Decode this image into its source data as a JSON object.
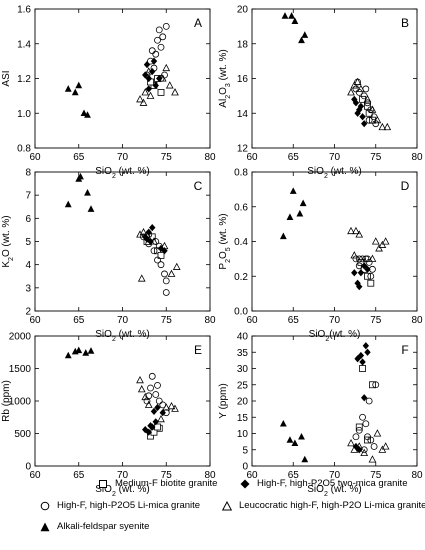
{
  "chart_data": [
    {
      "type": "scatter",
      "panel_letter": "A",
      "xlabel": "SiO2 (wt. %)",
      "ylabel": "ASI",
      "xlim": [
        60,
        80
      ],
      "ylim": [
        0.8,
        1.6
      ],
      "xticks": [
        60,
        65,
        70,
        75,
        80
      ],
      "yticks": [
        0.8,
        1.0,
        1.2,
        1.4,
        1.6
      ],
      "series": [
        {
          "key": "medium_f",
          "points": [
            [
              73.6,
              1.16
            ],
            [
              74.0,
              1.2
            ],
            [
              74.4,
              1.12
            ],
            [
              73.2,
              1.18
            ]
          ]
        },
        {
          "key": "high_f_two_mica",
          "points": [
            [
              72.6,
              1.22
            ],
            [
              73.0,
              1.2
            ],
            [
              73.4,
              1.24
            ],
            [
              73.8,
              1.16
            ],
            [
              74.2,
              1.2
            ],
            [
              73.0,
              1.14
            ],
            [
              72.8,
              1.28
            ],
            [
              73.6,
              1.3
            ]
          ]
        },
        {
          "key": "high_f_li_mica",
          "points": [
            [
              73.2,
              1.3
            ],
            [
              73.8,
              1.34
            ],
            [
              74.4,
              1.38
            ],
            [
              74.6,
              1.44
            ],
            [
              74.2,
              1.48
            ],
            [
              75.0,
              1.5
            ],
            [
              74.0,
              1.42
            ],
            [
              73.6,
              1.26
            ],
            [
              74.8,
              1.22
            ],
            [
              74.4,
              1.2
            ],
            [
              72.8,
              1.22
            ],
            [
              73.4,
              1.36
            ]
          ]
        },
        {
          "key": "leucocratic",
          "points": [
            [
              72.0,
              1.08
            ],
            [
              72.6,
              1.12
            ],
            [
              73.2,
              1.1
            ],
            [
              74.6,
              1.2
            ],
            [
              75.4,
              1.16
            ],
            [
              76.0,
              1.12
            ],
            [
              72.4,
              1.06
            ],
            [
              73.0,
              1.24
            ],
            [
              75.0,
              1.26
            ]
          ]
        },
        {
          "key": "syenite",
          "points": [
            [
              63.8,
              1.14
            ],
            [
              64.6,
              1.12
            ],
            [
              65.0,
              1.16
            ],
            [
              65.6,
              1.0
            ],
            [
              66.0,
              0.99
            ]
          ]
        }
      ]
    },
    {
      "type": "scatter",
      "panel_letter": "B",
      "xlabel": "SiO2 (wt. %)",
      "ylabel": "Al2O3 (wt. %)",
      "xlim": [
        60,
        80
      ],
      "ylim": [
        12,
        20
      ],
      "xticks": [
        60,
        65,
        70,
        75,
        80
      ],
      "yticks": [
        12,
        14,
        16,
        18,
        20
      ],
      "series": [
        {
          "key": "medium_f",
          "points": [
            [
              73.4,
              14.8
            ],
            [
              74.0,
              14.4
            ],
            [
              74.6,
              13.6
            ],
            [
              74.2,
              14.0
            ]
          ]
        },
        {
          "key": "high_f_two_mica",
          "points": [
            [
              72.6,
              14.6
            ],
            [
              73.0,
              14.2
            ],
            [
              73.4,
              13.8
            ],
            [
              73.2,
              14.4
            ],
            [
              72.8,
              14.0
            ],
            [
              73.6,
              13.4
            ],
            [
              72.4,
              14.8
            ]
          ]
        },
        {
          "key": "high_f_li_mica",
          "points": [
            [
              72.6,
              15.4
            ],
            [
              73.0,
              15.2
            ],
            [
              73.6,
              15.0
            ],
            [
              74.0,
              14.6
            ],
            [
              74.4,
              14.2
            ],
            [
              74.8,
              13.8
            ],
            [
              73.8,
              15.4
            ],
            [
              72.8,
              15.8
            ],
            [
              74.2,
              13.6
            ],
            [
              75.0,
              13.4
            ]
          ]
        },
        {
          "key": "leucocratic",
          "points": [
            [
              72.0,
              15.2
            ],
            [
              72.4,
              15.6
            ],
            [
              72.8,
              15.8
            ],
            [
              73.2,
              15.4
            ],
            [
              74.0,
              14.8
            ],
            [
              75.2,
              13.6
            ],
            [
              75.8,
              13.2
            ],
            [
              76.4,
              13.2
            ],
            [
              74.6,
              14.2
            ]
          ]
        },
        {
          "key": "syenite",
          "points": [
            [
              64.0,
              19.6
            ],
            [
              64.8,
              19.6
            ],
            [
              65.2,
              19.3
            ],
            [
              66.0,
              18.2
            ],
            [
              66.4,
              18.5
            ]
          ]
        }
      ]
    },
    {
      "type": "scatter",
      "panel_letter": "C",
      "xlabel": "SiO2 (wt. %)",
      "ylabel": "K2O (wt. %)",
      "xlim": [
        60,
        80
      ],
      "ylim": [
        2,
        8
      ],
      "xticks": [
        60,
        65,
        70,
        75,
        80
      ],
      "yticks": [
        2,
        3,
        4,
        5,
        6,
        7,
        8
      ],
      "series": [
        {
          "key": "medium_f",
          "points": [
            [
              72.8,
              5.0
            ],
            [
              73.4,
              5.2
            ],
            [
              74.0,
              4.6
            ],
            [
              74.4,
              4.4
            ]
          ]
        },
        {
          "key": "high_f_two_mica",
          "points": [
            [
              72.6,
              5.2
            ],
            [
              73.0,
              5.4
            ],
            [
              73.2,
              5.0
            ],
            [
              73.4,
              5.6
            ],
            [
              72.8,
              5.1
            ],
            [
              74.4,
              4.7
            ],
            [
              74.8,
              4.6
            ]
          ]
        },
        {
          "key": "high_f_li_mica",
          "points": [
            [
              72.4,
              5.2
            ],
            [
              73.0,
              4.9
            ],
            [
              73.6,
              4.6
            ],
            [
              74.0,
              4.2
            ],
            [
              74.4,
              4.0
            ],
            [
              74.8,
              3.6
            ],
            [
              75.0,
              3.3
            ],
            [
              75.0,
              2.8
            ],
            [
              73.8,
              5.0
            ],
            [
              74.2,
              4.8
            ],
            [
              73.0,
              5.3
            ]
          ]
        },
        {
          "key": "leucocratic",
          "points": [
            [
              72.0,
              5.3
            ],
            [
              72.4,
              5.4
            ],
            [
              72.8,
              5.3
            ],
            [
              74.8,
              4.8
            ],
            [
              75.6,
              3.6
            ],
            [
              76.2,
              3.9
            ],
            [
              72.2,
              3.4
            ],
            [
              73.6,
              5.0
            ]
          ]
        },
        {
          "key": "syenite",
          "points": [
            [
              63.8,
              6.6
            ],
            [
              65.0,
              7.7
            ],
            [
              65.2,
              7.8
            ],
            [
              66.0,
              7.1
            ],
            [
              66.4,
              6.4
            ]
          ]
        }
      ]
    },
    {
      "type": "scatter",
      "panel_letter": "D",
      "xlabel": "SiO2(wt. %)",
      "ylabel": "P2O5 (wt. %)",
      "xlim": [
        60,
        80
      ],
      "ylim": [
        0,
        0.8
      ],
      "xticks": [
        60,
        65,
        70,
        75,
        80
      ],
      "yticks": [
        0.0,
        0.2,
        0.4,
        0.6,
        0.8
      ],
      "series": [
        {
          "key": "medium_f",
          "points": [
            [
              73.6,
              0.24
            ],
            [
              74.0,
              0.2
            ],
            [
              74.4,
              0.16
            ],
            [
              73.2,
              0.28
            ]
          ]
        },
        {
          "key": "high_f_two_mica",
          "points": [
            [
              72.4,
              0.22
            ],
            [
              72.8,
              0.16
            ],
            [
              73.0,
              0.14
            ],
            [
              73.2,
              0.22
            ],
            [
              73.6,
              0.26
            ],
            [
              74.0,
              0.24
            ]
          ]
        },
        {
          "key": "high_f_li_mica",
          "points": [
            [
              72.6,
              0.3
            ],
            [
              73.0,
              0.3
            ],
            [
              73.4,
              0.3
            ],
            [
              73.8,
              0.3
            ],
            [
              74.2,
              0.28
            ],
            [
              74.6,
              0.24
            ],
            [
              73.0,
              0.26
            ],
            [
              74.0,
              0.3
            ],
            [
              74.4,
              0.2
            ]
          ]
        },
        {
          "key": "leucocratic",
          "points": [
            [
              72.0,
              0.46
            ],
            [
              72.6,
              0.46
            ],
            [
              73.0,
              0.44
            ],
            [
              72.4,
              0.32
            ],
            [
              75.0,
              0.4
            ],
            [
              75.8,
              0.38
            ],
            [
              76.2,
              0.4
            ],
            [
              75.4,
              0.36
            ],
            [
              74.6,
              0.3
            ]
          ]
        },
        {
          "key": "syenite",
          "points": [
            [
              63.8,
              0.43
            ],
            [
              64.6,
              0.54
            ],
            [
              65.0,
              0.69
            ],
            [
              65.8,
              0.56
            ],
            [
              66.2,
              0.62
            ]
          ]
        }
      ]
    },
    {
      "type": "scatter",
      "panel_letter": "E",
      "xlabel": "SiO2 (wt. %)",
      "ylabel": "Rb (ppm)",
      "xlim": [
        60,
        80
      ],
      "ylim": [
        0,
        2000
      ],
      "xticks": [
        60,
        65,
        70,
        75,
        80
      ],
      "yticks": [
        0,
        500,
        1000,
        1500,
        2000
      ],
      "series": [
        {
          "key": "medium_f",
          "points": [
            [
              73.2,
              460
            ],
            [
              74.2,
              580
            ],
            [
              73.6,
              520
            ],
            [
              74.0,
              600
            ]
          ]
        },
        {
          "key": "high_f_two_mica",
          "points": [
            [
              72.6,
              560
            ],
            [
              73.0,
              520
            ],
            [
              73.4,
              600
            ],
            [
              73.8,
              680
            ],
            [
              74.0,
              900
            ],
            [
              73.6,
              840
            ],
            [
              74.6,
              820
            ],
            [
              73.2,
              620
            ]
          ]
        },
        {
          "key": "high_f_li_mica",
          "points": [
            [
              72.8,
              1000
            ],
            [
              73.2,
              1200
            ],
            [
              73.4,
              1380
            ],
            [
              73.8,
              1100
            ],
            [
              74.2,
              1000
            ],
            [
              74.6,
              940
            ],
            [
              75.0,
              820
            ],
            [
              73.0,
              1080
            ],
            [
              74.0,
              1240
            ]
          ]
        },
        {
          "key": "leucocratic",
          "points": [
            [
              72.0,
              1320
            ],
            [
              72.2,
              1180
            ],
            [
              72.6,
              1060
            ],
            [
              73.0,
              940
            ],
            [
              75.0,
              900
            ],
            [
              75.6,
              920
            ],
            [
              76.0,
              880
            ],
            [
              74.4,
              720
            ]
          ]
        },
        {
          "key": "syenite",
          "points": [
            [
              63.8,
              1700
            ],
            [
              64.6,
              1760
            ],
            [
              65.0,
              1780
            ],
            [
              65.8,
              1740
            ],
            [
              66.4,
              1770
            ]
          ]
        }
      ]
    },
    {
      "type": "scatter",
      "panel_letter": "F",
      "xlabel": "SiO2 (wt. %)",
      "ylabel": "Y (ppm)",
      "xlim": [
        60,
        80
      ],
      "ylim": [
        0,
        40
      ],
      "xticks": [
        60,
        65,
        70,
        75,
        80
      ],
      "yticks": [
        0,
        5,
        10,
        15,
        20,
        25,
        30,
        35,
        40
      ],
      "series": [
        {
          "key": "medium_f",
          "points": [
            [
              73.4,
              30
            ],
            [
              74.6,
              25
            ],
            [
              74.0,
              8
            ],
            [
              73.0,
              12
            ]
          ]
        },
        {
          "key": "high_f_two_mica",
          "points": [
            [
              72.8,
              33
            ],
            [
              73.2,
              34
            ],
            [
              73.4,
              32
            ],
            [
              73.8,
              37
            ],
            [
              74.0,
              35
            ],
            [
              73.6,
              21
            ],
            [
              72.6,
              6
            ],
            [
              73.0,
              5
            ]
          ]
        },
        {
          "key": "high_f_li_mica",
          "points": [
            [
              72.6,
              9
            ],
            [
              73.0,
              11
            ],
            [
              73.4,
              15
            ],
            [
              73.8,
              13
            ],
            [
              74.0,
              9
            ],
            [
              74.4,
              8
            ],
            [
              74.8,
              6
            ],
            [
              74.2,
              20
            ],
            [
              75.0,
              25
            ],
            [
              73.6,
              5
            ]
          ]
        },
        {
          "key": "leucocratic",
          "points": [
            [
              72.0,
              7
            ],
            [
              72.4,
              5
            ],
            [
              73.0,
              6
            ],
            [
              73.6,
              4
            ],
            [
              75.2,
              10
            ],
            [
              75.8,
              5
            ],
            [
              76.2,
              6
            ],
            [
              74.6,
              2
            ]
          ]
        },
        {
          "key": "syenite",
          "points": [
            [
              63.8,
              13
            ],
            [
              64.6,
              8
            ],
            [
              65.2,
              7
            ],
            [
              66.0,
              9
            ],
            [
              66.4,
              2
            ]
          ]
        }
      ]
    }
  ],
  "legend": [
    {
      "key": "medium_f",
      "label": "Medium-F biotite granite",
      "marker": "square-open"
    },
    {
      "key": "high_f_two_mica",
      "label": "High-F, high-P2O5 two-mica granite",
      "marker": "diamond-filled"
    },
    {
      "key": "high_f_li_mica",
      "label": "High-F, high-P2O5 Li-mica granite",
      "marker": "circle-open"
    },
    {
      "key": "leucocratic",
      "label": "Leucocratic high-F, high-P2O Li-mica granite",
      "marker": "triangle-open"
    },
    {
      "key": "syenite",
      "label": "Alkali-feldspar syenite",
      "marker": "triangle-filled"
    }
  ]
}
